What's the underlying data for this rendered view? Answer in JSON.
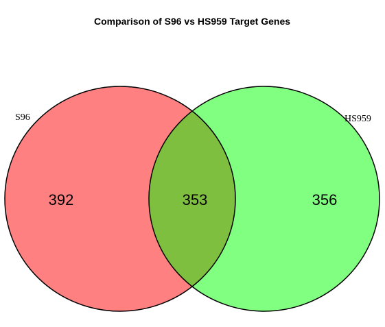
{
  "title": "Comparison of S96 vs HS959 Target Genes",
  "sets": [
    {
      "name": "S96",
      "color": "#ff8080"
    },
    {
      "name": "HS959",
      "color": "#80ff80"
    }
  ],
  "intersection_color": "#7fbf40",
  "counts": {
    "left_only": "392",
    "intersection": "353",
    "right_only": "356"
  }
}
